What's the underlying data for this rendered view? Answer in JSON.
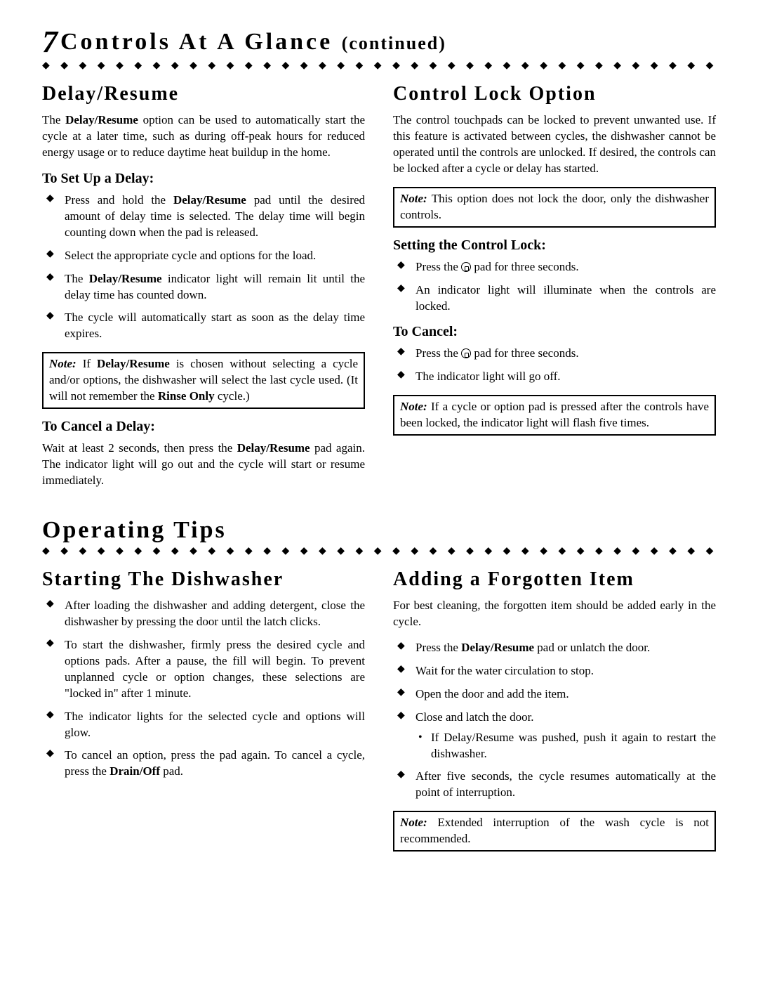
{
  "page": {
    "top_title_prefix": "Controls At A Glance",
    "top_title_paren": "(continued)",
    "diamonds": "◆ ◆ ◆ ◆ ◆ ◆ ◆ ◆ ◆ ◆ ◆ ◆ ◆ ◆ ◆ ◆ ◆ ◆ ◆ ◆ ◆ ◆ ◆ ◆ ◆ ◆ ◆ ◆ ◆ ◆ ◆ ◆ ◆ ◆ ◆ ◆ ◆ ◆ ◆ ◆ ◆ ◆ ◆ ◆ ◆ ◆ ◆ ◆ ◆ ◆ ◆ ◆ ◆ ◆ ◆ ◆ ◆",
    "operating_tips": "Operating Tips",
    "colors": {
      "text": "#000000",
      "background": "#ffffff"
    },
    "fontsizes": {
      "top_title": 34,
      "section_head": 28,
      "sub_head": 20,
      "body": 17,
      "big_heading": 34
    }
  },
  "delay_resume": {
    "heading": "Delay/Resume",
    "intro": "The Delay/Resume option can be used to automatically start the cycle at a later time, such as during off-peak hours for reduced energy usage or to reduce daytime heat buildup in the home.",
    "setup_heading": "To Set Up a Delay:",
    "setup_items": [
      "Press and hold the Delay/Resume pad until the desired amount of delay time is selected. The delay time will begin counting down when the pad is released.",
      "Select the appropriate cycle and options for the load.",
      "The Delay/Resume indicator light will remain lit until the delay time has counted down.",
      "The cycle will automatically start as soon as the delay time expires."
    ],
    "note": "Note: If Delay/Resume is chosen without selecting a cycle and/or options, the dishwasher will select the last cycle used. (It will not remember the Rinse Only cycle.)",
    "cancel_heading": "To Cancel a Delay:",
    "cancel_text": "Wait at least 2 seconds, then press the Delay/Resume pad again. The indicator light will go out and the cycle will start or resume immediately."
  },
  "control_lock": {
    "heading": "Control Lock Option",
    "intro": "The control touchpads can be locked to prevent unwanted use. If this feature is activated between cycles, the dishwasher cannot be operated until the controls are unlocked. If desired, the controls can be locked after a cycle or delay has started.",
    "note1": "Note: This option does not lock the door, only the dishwasher controls.",
    "set_heading": "Setting the Control Lock:",
    "set_items": [
      "Press the pad for three seconds.",
      "An indicator light will illuminate when the controls are locked."
    ],
    "cancel_heading": "To Cancel:",
    "cancel_items": [
      "Press the pad for three seconds.",
      "The indicator light will go off."
    ],
    "note2": "Note: If a cycle or option pad is pressed after the controls have been locked, the indicator light will flash five times."
  },
  "starting": {
    "heading": "Starting The Dishwasher",
    "items": [
      "After loading the dishwasher and adding detergent, close the dishwasher by pressing the door until the latch clicks.",
      "To start the dishwasher, firmly press the desired cycle and options pads. After a pause, the fill will begin. To prevent unplanned cycle or option changes, these selections are \"locked in\" after 1 minute.",
      "The indicator lights for the selected cycle and options will glow.",
      "To cancel an option, press the pad again. To cancel a cycle, press the Drain/Off pad."
    ]
  },
  "adding": {
    "heading": "Adding a Forgotten Item",
    "intro": "For best cleaning, the forgotten item should be added early in the cycle.",
    "items": [
      "Press the Delay/Resume pad or unlatch the door.",
      "Wait for the water circulation to stop.",
      "Open the door and add the item.",
      "Close and latch the door.",
      "After five seconds, the cycle resumes automatically at the point of interruption."
    ],
    "sub_item": "If Delay/Resume was pushed, push it again to restart the dishwasher.",
    "note": "Note: Extended interruption of the wash cycle is not recommended."
  }
}
